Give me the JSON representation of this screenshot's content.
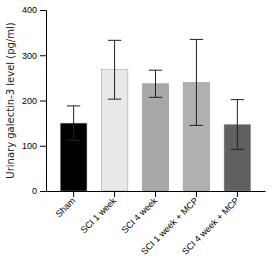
{
  "chart_data": {
    "type": "bar",
    "categories": [
      "Sham",
      "SCI 1 week",
      "SCI 4 week",
      "SCI 1 week + MCP",
      "SCI 4 week + MCP"
    ],
    "values": [
      150,
      268,
      237,
      240,
      147
    ],
    "errors": [
      38,
      65,
      30,
      95,
      55
    ],
    "colors": [
      "#000000",
      "#e8e8e8",
      "#a8a8a8",
      "#b0b0b0",
      "#606060"
    ],
    "ylabel": "Urinary galectin-3 level (pg/ml)",
    "ylim": [
      0,
      400
    ],
    "yticks": [
      0,
      100,
      200,
      300,
      400
    ],
    "grid": false
  }
}
